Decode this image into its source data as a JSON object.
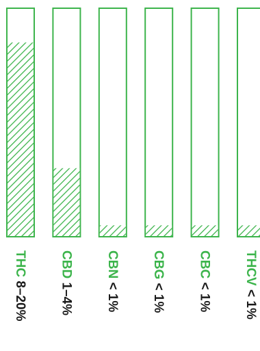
{
  "chart_data": {
    "type": "bar",
    "orientation": "vertical",
    "categories": [
      "THC",
      "CBD",
      "CBN",
      "CBG",
      "CBC",
      "THCV"
    ],
    "labels": [
      "8–20%",
      "1–4%",
      "< 1%",
      "< 1%",
      "< 1%",
      "< 1%"
    ],
    "values": [
      0.85,
      0.3,
      0.05,
      0.05,
      0.05,
      0.05
    ],
    "value_unit": "fraction of bar filled",
    "fill_pattern": "diagonal-hatch",
    "ylim": [
      0,
      1
    ],
    "grid": false,
    "legend": "none",
    "title": "",
    "xlabel": "",
    "ylabel": ""
  },
  "colors": {
    "accent": "#3cb44b",
    "hatch": "#3cb44b",
    "text_dark": "#1a1a1a",
    "background": "#ffffff"
  }
}
